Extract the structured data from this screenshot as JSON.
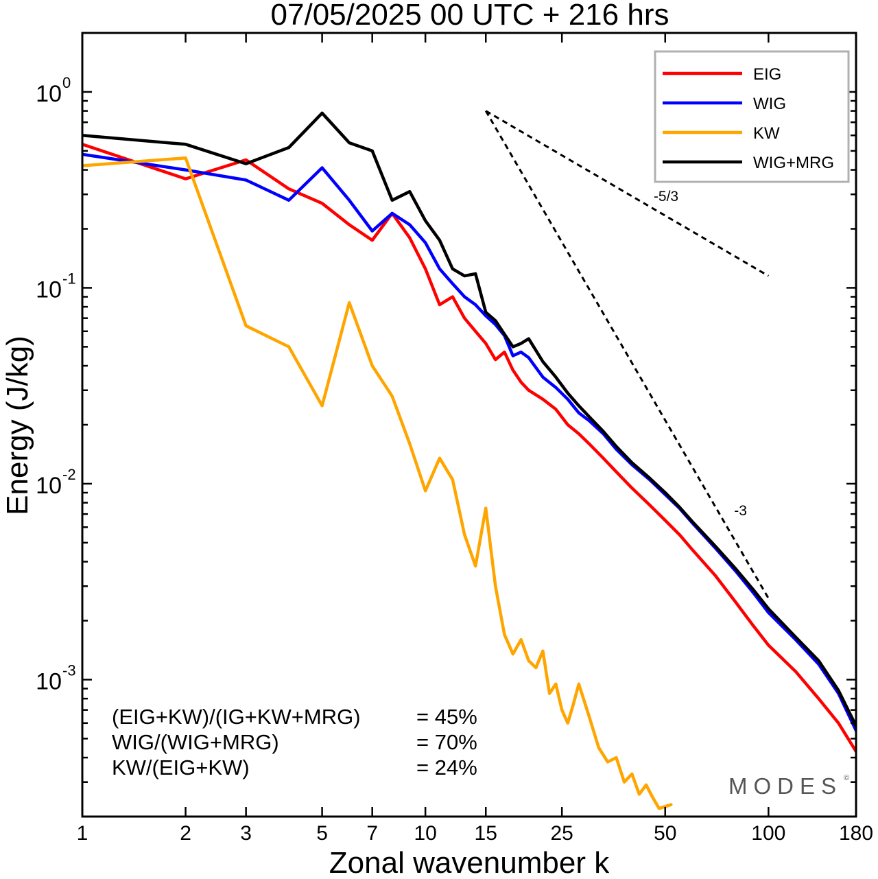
{
  "chart_data": {
    "type": "line",
    "title": "07/05/2025  00 UTC  + 216 hrs",
    "xlabel": "Zonal wavenumber k",
    "ylabel": "Energy (J/kg)",
    "xscale": "log",
    "yscale": "log",
    "xlim": [
      1,
      180
    ],
    "ylim": [
      0.0002,
      2
    ],
    "grid": false,
    "legend_position": "top-right",
    "x_ticks": [
      {
        "value": 1,
        "label": "1"
      },
      {
        "value": 2,
        "label": "2"
      },
      {
        "value": 3,
        "label": "3"
      },
      {
        "value": 5,
        "label": "5"
      },
      {
        "value": 7,
        "label": "7"
      },
      {
        "value": 10,
        "label": "10"
      },
      {
        "value": 15,
        "label": "15"
      },
      {
        "value": 25,
        "label": "25"
      },
      {
        "value": 50,
        "label": "50"
      },
      {
        "value": 100,
        "label": "100"
      },
      {
        "value": 180,
        "label": "180"
      }
    ],
    "y_ticks": [
      {
        "value": 1,
        "base": "10",
        "exp": "0"
      },
      {
        "value": 0.1,
        "base": "10",
        "exp": "-1"
      },
      {
        "value": 0.01,
        "base": "10",
        "exp": "-2"
      },
      {
        "value": 0.001,
        "base": "10",
        "exp": "-3"
      }
    ],
    "series": [
      {
        "name": "EIG",
        "color": "#ff0000",
        "x": [
          1,
          2,
          3,
          4,
          5,
          6,
          7,
          8,
          9,
          10,
          11,
          12,
          13,
          14,
          15,
          16,
          17,
          18,
          19,
          20,
          22,
          24,
          26,
          28,
          30,
          33,
          36,
          40,
          45,
          50,
          55,
          60,
          70,
          80,
          90,
          100,
          120,
          140,
          160,
          180
        ],
        "y": [
          0.54,
          0.36,
          0.45,
          0.32,
          0.27,
          0.21,
          0.175,
          0.24,
          0.18,
          0.125,
          0.082,
          0.09,
          0.07,
          0.06,
          0.052,
          0.043,
          0.047,
          0.038,
          0.033,
          0.03,
          0.027,
          0.024,
          0.02,
          0.018,
          0.016,
          0.0135,
          0.0115,
          0.0095,
          0.0078,
          0.0065,
          0.0055,
          0.0046,
          0.0034,
          0.0025,
          0.0019,
          0.0015,
          0.0011,
          0.0008,
          0.0006,
          0.00043
        ]
      },
      {
        "name": "WIG",
        "color": "#0000ff",
        "x": [
          1,
          2,
          3,
          4,
          5,
          6,
          7,
          8,
          9,
          10,
          11,
          12,
          13,
          14,
          15,
          16,
          17,
          18,
          19,
          20,
          22,
          24,
          26,
          28,
          30,
          33,
          36,
          40,
          45,
          50,
          55,
          60,
          70,
          80,
          90,
          100,
          120,
          140,
          160,
          180
        ],
        "y": [
          0.48,
          0.4,
          0.355,
          0.28,
          0.41,
          0.28,
          0.195,
          0.24,
          0.21,
          0.17,
          0.125,
          0.105,
          0.09,
          0.082,
          0.072,
          0.065,
          0.057,
          0.045,
          0.047,
          0.044,
          0.035,
          0.031,
          0.027,
          0.023,
          0.021,
          0.018,
          0.015,
          0.0125,
          0.0105,
          0.0088,
          0.0075,
          0.0063,
          0.0047,
          0.0036,
          0.0028,
          0.0022,
          0.0016,
          0.0012,
          0.00085,
          0.00055
        ]
      },
      {
        "name": "KW",
        "color": "#ffa500",
        "x": [
          1,
          2,
          3,
          4,
          5,
          6,
          7,
          8,
          9,
          10,
          11,
          12,
          13,
          14,
          15,
          16,
          17,
          18,
          19,
          20,
          21,
          22,
          23,
          24,
          25,
          26,
          27,
          28,
          30,
          32,
          34,
          36,
          38,
          40,
          42,
          44,
          46,
          48,
          52
        ],
        "y": [
          0.42,
          0.46,
          0.064,
          0.05,
          0.025,
          0.084,
          0.04,
          0.028,
          0.016,
          0.0092,
          0.0135,
          0.0105,
          0.0055,
          0.0038,
          0.0075,
          0.003,
          0.0017,
          0.00135,
          0.0016,
          0.00125,
          0.00115,
          0.0014,
          0.00085,
          0.00095,
          0.0007,
          0.0006,
          0.00075,
          0.00095,
          0.00065,
          0.00045,
          0.00038,
          0.0004,
          0.0003,
          0.00033,
          0.00026,
          0.00029,
          0.00025,
          0.00022,
          0.00023
        ]
      },
      {
        "name": "WIG+MRG",
        "color": "#000000",
        "x": [
          1,
          2,
          3,
          4,
          5,
          6,
          7,
          8,
          9,
          10,
          11,
          12,
          13,
          14,
          15,
          16,
          17,
          18,
          19,
          20,
          22,
          24,
          26,
          28,
          30,
          33,
          36,
          40,
          45,
          50,
          55,
          60,
          70,
          80,
          90,
          100,
          120,
          140,
          160,
          180
        ],
        "y": [
          0.6,
          0.54,
          0.43,
          0.52,
          0.78,
          0.55,
          0.5,
          0.28,
          0.31,
          0.22,
          0.175,
          0.125,
          0.115,
          0.118,
          0.075,
          0.068,
          0.058,
          0.05,
          0.052,
          0.055,
          0.042,
          0.035,
          0.029,
          0.025,
          0.022,
          0.0185,
          0.0155,
          0.0128,
          0.0107,
          0.009,
          0.0076,
          0.0064,
          0.0048,
          0.0037,
          0.0029,
          0.0023,
          0.00165,
          0.00125,
          0.00088,
          0.00058
        ]
      }
    ],
    "reference_lines": [
      {
        "label": "-5/3",
        "x": [
          15,
          100
        ],
        "y": [
          0.8,
          0.115
        ]
      },
      {
        "label": "-3",
        "x": [
          15,
          100
        ],
        "y": [
          0.8,
          0.0026
        ]
      }
    ],
    "stats": [
      {
        "label": "(EIG+KW)/(IG+KW+MRG)",
        "value": "= 45%"
      },
      {
        "label": "WIG/(WIG+MRG)",
        "value": "= 70%"
      },
      {
        "label": "KW/(EIG+KW)",
        "value": "= 24%"
      }
    ],
    "watermark": "MODES",
    "copyright": "©"
  }
}
